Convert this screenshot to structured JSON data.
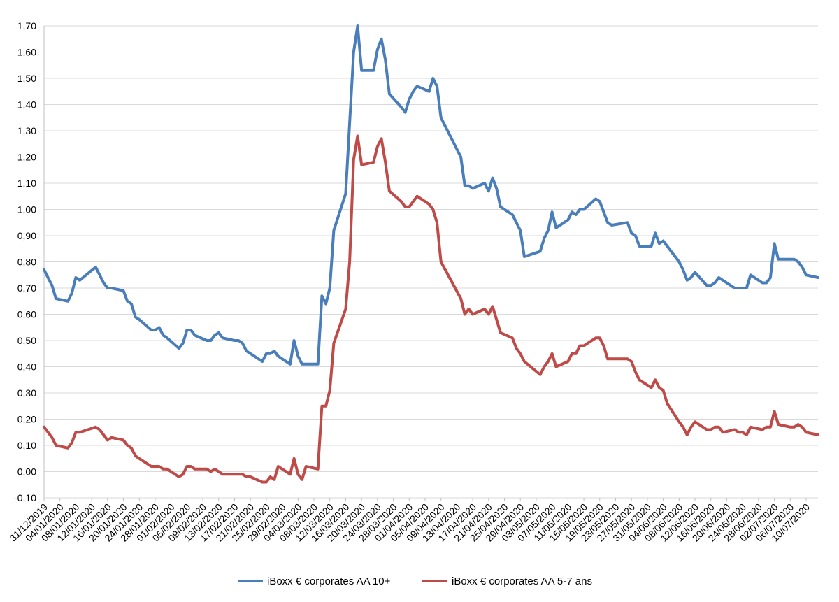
{
  "chart_data": {
    "type": "line",
    "title": "",
    "xlabel": "",
    "ylabel": "",
    "ylim": [
      -0.1,
      1.7
    ],
    "ytick_step": 0.1,
    "y_ticks": [
      "-0,10",
      "0,00",
      "0,10",
      "0,20",
      "0,30",
      "0,40",
      "0,50",
      "0,60",
      "0,70",
      "0,80",
      "0,90",
      "1,00",
      "1,10",
      "1,20",
      "1,30",
      "1,40",
      "1,50",
      "1,60",
      "1,70"
    ],
    "grid": true,
    "legend_position": "bottom",
    "x_tick_labels": [
      "31/12/2019",
      "04/01/2020",
      "08/01/2020",
      "12/01/2020",
      "16/01/2020",
      "20/01/2020",
      "24/01/2020",
      "28/01/2020",
      "01/02/2020",
      "05/02/2020",
      "09/02/2020",
      "13/02/2020",
      "17/02/2020",
      "21/02/2020",
      "25/02/2020",
      "29/02/2020",
      "04/03/2020",
      "08/03/2020",
      "12/03/2020",
      "16/03/2020",
      "20/03/2020",
      "24/03/2020",
      "28/03/2020",
      "01/04/2020",
      "05/04/2020",
      "09/04/2020",
      "13/04/2020",
      "17/04/2020",
      "21/04/2020",
      "25/04/2020",
      "29/04/2020",
      "03/05/2020",
      "07/05/2020",
      "11/05/2020",
      "15/05/2020",
      "19/05/2020",
      "23/05/2020",
      "27/05/2020",
      "31/05/2020",
      "04/06/2020",
      "08/06/2020",
      "12/06/2020",
      "16/06/2020",
      "20/06/2020",
      "24/06/2020",
      "28/06/2020",
      "02/07/2020",
      "06/07/2020",
      "10/07/2020"
    ],
    "series": [
      {
        "name": "iBoxx € corporates AA 10+",
        "color": "#4a7ebb",
        "points": [
          [
            "31/12/2019",
            0.77
          ],
          [
            "02/01/2020",
            0.71
          ],
          [
            "03/01/2020",
            0.66
          ],
          [
            "06/01/2020",
            0.65
          ],
          [
            "07/01/2020",
            0.68
          ],
          [
            "08/01/2020",
            0.74
          ],
          [
            "09/01/2020",
            0.73
          ],
          [
            "13/01/2020",
            0.78
          ],
          [
            "15/01/2020",
            0.72
          ],
          [
            "16/01/2020",
            0.7
          ],
          [
            "17/01/2020",
            0.7
          ],
          [
            "20/01/2020",
            0.69
          ],
          [
            "21/01/2020",
            0.65
          ],
          [
            "22/01/2020",
            0.64
          ],
          [
            "23/01/2020",
            0.59
          ],
          [
            "24/01/2020",
            0.58
          ],
          [
            "27/01/2020",
            0.54
          ],
          [
            "28/01/2020",
            0.54
          ],
          [
            "29/01/2020",
            0.55
          ],
          [
            "30/01/2020",
            0.52
          ],
          [
            "31/01/2020",
            0.51
          ],
          [
            "03/02/2020",
            0.47
          ],
          [
            "04/02/2020",
            0.49
          ],
          [
            "05/02/2020",
            0.54
          ],
          [
            "06/02/2020",
            0.54
          ],
          [
            "07/02/2020",
            0.52
          ],
          [
            "10/02/2020",
            0.5
          ],
          [
            "11/02/2020",
            0.5
          ],
          [
            "12/02/2020",
            0.52
          ],
          [
            "13/02/2020",
            0.53
          ],
          [
            "14/02/2020",
            0.51
          ],
          [
            "17/02/2020",
            0.5
          ],
          [
            "18/02/2020",
            0.5
          ],
          [
            "19/02/2020",
            0.49
          ],
          [
            "20/02/2020",
            0.46
          ],
          [
            "21/02/2020",
            0.45
          ],
          [
            "24/02/2020",
            0.42
          ],
          [
            "25/02/2020",
            0.45
          ],
          [
            "26/02/2020",
            0.45
          ],
          [
            "27/02/2020",
            0.46
          ],
          [
            "28/02/2020",
            0.44
          ],
          [
            "02/03/2020",
            0.41
          ],
          [
            "03/03/2020",
            0.5
          ],
          [
            "04/03/2020",
            0.44
          ],
          [
            "05/03/2020",
            0.41
          ],
          [
            "06/03/2020",
            0.41
          ],
          [
            "09/03/2020",
            0.41
          ],
          [
            "10/03/2020",
            0.67
          ],
          [
            "11/03/2020",
            0.64
          ],
          [
            "12/03/2020",
            0.7
          ],
          [
            "13/03/2020",
            0.92
          ],
          [
            "16/03/2020",
            1.06
          ],
          [
            "17/03/2020",
            1.33
          ],
          [
            "18/03/2020",
            1.6
          ],
          [
            "19/03/2020",
            1.7
          ],
          [
            "20/03/2020",
            1.53
          ],
          [
            "23/03/2020",
            1.53
          ],
          [
            "24/03/2020",
            1.61
          ],
          [
            "25/03/2020",
            1.65
          ],
          [
            "26/03/2020",
            1.57
          ],
          [
            "27/03/2020",
            1.44
          ],
          [
            "30/03/2020",
            1.39
          ],
          [
            "31/03/2020",
            1.37
          ],
          [
            "01/04/2020",
            1.42
          ],
          [
            "02/04/2020",
            1.45
          ],
          [
            "03/04/2020",
            1.47
          ],
          [
            "06/04/2020",
            1.45
          ],
          [
            "07/04/2020",
            1.5
          ],
          [
            "08/04/2020",
            1.47
          ],
          [
            "09/04/2020",
            1.35
          ],
          [
            "14/04/2020",
            1.2
          ],
          [
            "15/04/2020",
            1.09
          ],
          [
            "16/04/2020",
            1.09
          ],
          [
            "17/04/2020",
            1.08
          ],
          [
            "20/04/2020",
            1.1
          ],
          [
            "21/04/2020",
            1.07
          ],
          [
            "22/04/2020",
            1.12
          ],
          [
            "23/04/2020",
            1.08
          ],
          [
            "24/04/2020",
            1.01
          ],
          [
            "27/04/2020",
            0.98
          ],
          [
            "28/04/2020",
            0.95
          ],
          [
            "29/04/2020",
            0.92
          ],
          [
            "30/04/2020",
            0.82
          ],
          [
            "04/05/2020",
            0.84
          ],
          [
            "05/05/2020",
            0.89
          ],
          [
            "06/05/2020",
            0.92
          ],
          [
            "07/05/2020",
            0.99
          ],
          [
            "08/05/2020",
            0.93
          ],
          [
            "11/05/2020",
            0.96
          ],
          [
            "12/05/2020",
            0.99
          ],
          [
            "13/05/2020",
            0.98
          ],
          [
            "14/05/2020",
            1.0
          ],
          [
            "15/05/2020",
            1.0
          ],
          [
            "18/05/2020",
            1.04
          ],
          [
            "19/05/2020",
            1.03
          ],
          [
            "20/05/2020",
            0.99
          ],
          [
            "21/05/2020",
            0.95
          ],
          [
            "22/05/2020",
            0.94
          ],
          [
            "26/05/2020",
            0.95
          ],
          [
            "27/05/2020",
            0.91
          ],
          [
            "28/05/2020",
            0.9
          ],
          [
            "29/05/2020",
            0.86
          ],
          [
            "01/06/2020",
            0.86
          ],
          [
            "02/06/2020",
            0.91
          ],
          [
            "03/06/2020",
            0.87
          ],
          [
            "04/06/2020",
            0.88
          ],
          [
            "05/06/2020",
            0.86
          ],
          [
            "08/06/2020",
            0.8
          ],
          [
            "09/06/2020",
            0.77
          ],
          [
            "10/06/2020",
            0.73
          ],
          [
            "11/06/2020",
            0.74
          ],
          [
            "12/06/2020",
            0.76
          ],
          [
            "15/06/2020",
            0.71
          ],
          [
            "16/06/2020",
            0.71
          ],
          [
            "17/06/2020",
            0.72
          ],
          [
            "18/06/2020",
            0.74
          ],
          [
            "19/06/2020",
            0.73
          ],
          [
            "22/06/2020",
            0.7
          ],
          [
            "23/06/2020",
            0.7
          ],
          [
            "24/06/2020",
            0.7
          ],
          [
            "25/06/2020",
            0.7
          ],
          [
            "26/06/2020",
            0.75
          ],
          [
            "29/06/2020",
            0.72
          ],
          [
            "30/06/2020",
            0.72
          ],
          [
            "01/07/2020",
            0.74
          ],
          [
            "02/07/2020",
            0.87
          ],
          [
            "03/07/2020",
            0.81
          ],
          [
            "06/07/2020",
            0.81
          ],
          [
            "07/07/2020",
            0.81
          ],
          [
            "08/07/2020",
            0.8
          ],
          [
            "09/07/2020",
            0.78
          ],
          [
            "10/07/2020",
            0.75
          ],
          [
            "13/07/2020",
            0.74
          ]
        ]
      },
      {
        "name": "iBoxx € corporates AA 5-7 ans",
        "color": "#be4b48",
        "points": [
          [
            "31/12/2019",
            0.17
          ],
          [
            "02/01/2020",
            0.13
          ],
          [
            "03/01/2020",
            0.1
          ],
          [
            "06/01/2020",
            0.09
          ],
          [
            "07/01/2020",
            0.11
          ],
          [
            "08/01/2020",
            0.15
          ],
          [
            "09/01/2020",
            0.15
          ],
          [
            "13/01/2020",
            0.17
          ],
          [
            "14/01/2020",
            0.16
          ],
          [
            "15/01/2020",
            0.14
          ],
          [
            "16/01/2020",
            0.12
          ],
          [
            "17/01/2020",
            0.13
          ],
          [
            "20/01/2020",
            0.12
          ],
          [
            "21/01/2020",
            0.1
          ],
          [
            "22/01/2020",
            0.09
          ],
          [
            "23/01/2020",
            0.06
          ],
          [
            "24/01/2020",
            0.05
          ],
          [
            "27/01/2020",
            0.02
          ],
          [
            "28/01/2020",
            0.02
          ],
          [
            "29/01/2020",
            0.02
          ],
          [
            "30/01/2020",
            0.01
          ],
          [
            "31/01/2020",
            0.01
          ],
          [
            "03/02/2020",
            -0.02
          ],
          [
            "04/02/2020",
            -0.01
          ],
          [
            "05/02/2020",
            0.02
          ],
          [
            "06/02/2020",
            0.02
          ],
          [
            "07/02/2020",
            0.01
          ],
          [
            "10/02/2020",
            0.01
          ],
          [
            "11/02/2020",
            0.0
          ],
          [
            "12/02/2020",
            0.01
          ],
          [
            "13/02/2020",
            0.0
          ],
          [
            "14/02/2020",
            -0.01
          ],
          [
            "17/02/2020",
            -0.01
          ],
          [
            "18/02/2020",
            -0.01
          ],
          [
            "19/02/2020",
            -0.01
          ],
          [
            "20/02/2020",
            -0.02
          ],
          [
            "21/02/2020",
            -0.02
          ],
          [
            "24/02/2020",
            -0.04
          ],
          [
            "25/02/2020",
            -0.04
          ],
          [
            "26/02/2020",
            -0.02
          ],
          [
            "27/02/2020",
            -0.03
          ],
          [
            "28/02/2020",
            0.02
          ],
          [
            "02/03/2020",
            -0.01
          ],
          [
            "03/03/2020",
            0.05
          ],
          [
            "04/03/2020",
            -0.01
          ],
          [
            "05/03/2020",
            -0.03
          ],
          [
            "06/03/2020",
            0.02
          ],
          [
            "09/03/2020",
            0.01
          ],
          [
            "10/03/2020",
            0.25
          ],
          [
            "11/03/2020",
            0.25
          ],
          [
            "12/03/2020",
            0.31
          ],
          [
            "13/03/2020",
            0.49
          ],
          [
            "16/03/2020",
            0.62
          ],
          [
            "17/03/2020",
            0.8
          ],
          [
            "18/03/2020",
            1.19
          ],
          [
            "19/03/2020",
            1.28
          ],
          [
            "20/03/2020",
            1.17
          ],
          [
            "23/03/2020",
            1.18
          ],
          [
            "24/03/2020",
            1.24
          ],
          [
            "25/03/2020",
            1.27
          ],
          [
            "26/03/2020",
            1.18
          ],
          [
            "27/03/2020",
            1.07
          ],
          [
            "30/03/2020",
            1.03
          ],
          [
            "31/03/2020",
            1.01
          ],
          [
            "01/04/2020",
            1.01
          ],
          [
            "02/04/2020",
            1.03
          ],
          [
            "03/04/2020",
            1.05
          ],
          [
            "06/04/2020",
            1.02
          ],
          [
            "07/04/2020",
            1.0
          ],
          [
            "08/04/2020",
            0.95
          ],
          [
            "09/04/2020",
            0.8
          ],
          [
            "14/04/2020",
            0.66
          ],
          [
            "15/04/2020",
            0.6
          ],
          [
            "16/04/2020",
            0.62
          ],
          [
            "17/04/2020",
            0.6
          ],
          [
            "20/04/2020",
            0.62
          ],
          [
            "21/04/2020",
            0.6
          ],
          [
            "22/04/2020",
            0.63
          ],
          [
            "23/04/2020",
            0.58
          ],
          [
            "24/04/2020",
            0.53
          ],
          [
            "27/04/2020",
            0.51
          ],
          [
            "28/04/2020",
            0.47
          ],
          [
            "29/04/2020",
            0.45
          ],
          [
            "30/04/2020",
            0.42
          ],
          [
            "04/05/2020",
            0.37
          ],
          [
            "05/05/2020",
            0.4
          ],
          [
            "06/05/2020",
            0.42
          ],
          [
            "07/05/2020",
            0.45
          ],
          [
            "08/05/2020",
            0.4
          ],
          [
            "11/05/2020",
            0.42
          ],
          [
            "12/05/2020",
            0.45
          ],
          [
            "13/05/2020",
            0.45
          ],
          [
            "14/05/2020",
            0.48
          ],
          [
            "15/05/2020",
            0.48
          ],
          [
            "18/05/2020",
            0.51
          ],
          [
            "19/05/2020",
            0.51
          ],
          [
            "20/05/2020",
            0.48
          ],
          [
            "21/05/2020",
            0.43
          ],
          [
            "22/05/2020",
            0.43
          ],
          [
            "26/05/2020",
            0.43
          ],
          [
            "27/05/2020",
            0.42
          ],
          [
            "28/05/2020",
            0.38
          ],
          [
            "29/05/2020",
            0.35
          ],
          [
            "01/06/2020",
            0.32
          ],
          [
            "02/06/2020",
            0.35
          ],
          [
            "03/06/2020",
            0.32
          ],
          [
            "04/06/2020",
            0.31
          ],
          [
            "05/06/2020",
            0.26
          ],
          [
            "08/06/2020",
            0.19
          ],
          [
            "09/06/2020",
            0.17
          ],
          [
            "10/06/2020",
            0.14
          ],
          [
            "11/06/2020",
            0.17
          ],
          [
            "12/06/2020",
            0.19
          ],
          [
            "15/06/2020",
            0.16
          ],
          [
            "16/06/2020",
            0.16
          ],
          [
            "17/06/2020",
            0.17
          ],
          [
            "18/06/2020",
            0.17
          ],
          [
            "19/06/2020",
            0.15
          ],
          [
            "22/06/2020",
            0.16
          ],
          [
            "23/06/2020",
            0.15
          ],
          [
            "24/06/2020",
            0.15
          ],
          [
            "25/06/2020",
            0.14
          ],
          [
            "26/06/2020",
            0.17
          ],
          [
            "29/06/2020",
            0.16
          ],
          [
            "30/06/2020",
            0.17
          ],
          [
            "01/07/2020",
            0.17
          ],
          [
            "02/07/2020",
            0.23
          ],
          [
            "03/07/2020",
            0.18
          ],
          [
            "06/07/2020",
            0.17
          ],
          [
            "07/07/2020",
            0.17
          ],
          [
            "08/07/2020",
            0.18
          ],
          [
            "09/07/2020",
            0.17
          ],
          [
            "10/07/2020",
            0.15
          ],
          [
            "13/07/2020",
            0.14
          ]
        ]
      }
    ]
  }
}
